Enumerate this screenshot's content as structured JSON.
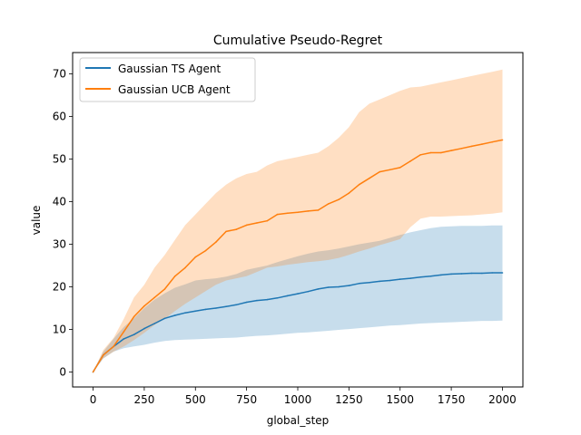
{
  "chart_data": {
    "type": "line",
    "title": "Cumulative Pseudo-Regret",
    "xlabel": "global_step",
    "ylabel": "value",
    "xlim": [
      -100,
      2100
    ],
    "ylim": [
      -3.5,
      75
    ],
    "xticks": [
      0,
      250,
      500,
      750,
      1000,
      1250,
      1500,
      1750,
      2000
    ],
    "yticks": [
      0,
      10,
      20,
      30,
      40,
      50,
      60,
      70
    ],
    "grid": false,
    "legend_position": "upper-left",
    "series": [
      {
        "name": "Gaussian TS Agent",
        "color": "#1f77b4",
        "x": [
          0,
          50,
          100,
          150,
          200,
          250,
          300,
          350,
          400,
          450,
          500,
          550,
          600,
          650,
          700,
          750,
          800,
          850,
          900,
          950,
          1000,
          1050,
          1100,
          1150,
          1200,
          1250,
          1300,
          1350,
          1400,
          1450,
          1500,
          1550,
          1600,
          1650,
          1700,
          1750,
          1800,
          1850,
          1900,
          1950,
          2000
        ],
        "y": [
          0,
          4,
          6,
          7.8,
          8.8,
          10.2,
          11.4,
          12.6,
          13.3,
          13.9,
          14.3,
          14.7,
          15.0,
          15.4,
          15.8,
          16.4,
          16.8,
          17.0,
          17.4,
          17.9,
          18.4,
          18.9,
          19.5,
          19.9,
          20.0,
          20.3,
          20.8,
          21.0,
          21.3,
          21.5,
          21.8,
          22.0,
          22.3,
          22.5,
          22.8,
          23.0,
          23.1,
          23.2,
          23.2,
          23.3,
          23.3
        ],
        "lower": [
          0,
          3.2,
          4.8,
          5.6,
          6.0,
          6.4,
          6.9,
          7.3,
          7.5,
          7.6,
          7.7,
          7.8,
          7.9,
          8.0,
          8.1,
          8.3,
          8.5,
          8.6,
          8.8,
          9.0,
          9.2,
          9.3,
          9.5,
          9.7,
          9.9,
          10.1,
          10.3,
          10.5,
          10.7,
          10.9,
          11.0,
          11.2,
          11.4,
          11.5,
          11.6,
          11.7,
          11.8,
          11.9,
          12.0,
          12.0,
          12.1
        ],
        "upper": [
          0,
          4.8,
          7.8,
          10.6,
          12.6,
          15.0,
          17.0,
          18.5,
          19.8,
          20.6,
          21.5,
          21.8,
          22.0,
          22.4,
          23.0,
          24.0,
          24.5,
          25.0,
          25.8,
          26.5,
          27.2,
          27.8,
          28.3,
          28.6,
          29.0,
          29.5,
          30.0,
          30.4,
          30.8,
          31.5,
          32.2,
          32.8,
          33.3,
          33.8,
          34.1,
          34.2,
          34.3,
          34.3,
          34.3,
          34.4,
          34.4
        ]
      },
      {
        "name": "Gaussian UCB Agent",
        "color": "#ff7f0e",
        "x": [
          0,
          50,
          100,
          150,
          200,
          250,
          300,
          350,
          400,
          450,
          500,
          550,
          600,
          650,
          700,
          750,
          800,
          850,
          900,
          950,
          1000,
          1050,
          1100,
          1150,
          1200,
          1250,
          1300,
          1350,
          1400,
          1450,
          1500,
          1550,
          1600,
          1650,
          1700,
          1750,
          1800,
          1850,
          1900,
          1950,
          2000
        ],
        "y": [
          0,
          4,
          6,
          9.5,
          13.0,
          15.5,
          17.5,
          19.5,
          22.5,
          24.5,
          27.0,
          28.5,
          30.5,
          33.0,
          33.5,
          34.5,
          35.0,
          35.5,
          37.0,
          37.3,
          37.5,
          37.8,
          38.0,
          39.5,
          40.5,
          42.0,
          44.0,
          45.5,
          47.0,
          47.5,
          48.0,
          49.5,
          51.0,
          51.5,
          51.5,
          52.0,
          52.5,
          53.0,
          53.5,
          54.0,
          54.5
        ],
        "lower": [
          0,
          3.2,
          4.8,
          6.0,
          7.5,
          9.2,
          11.0,
          12.5,
          14.3,
          16.0,
          17.5,
          19.0,
          20.5,
          21.5,
          22.0,
          22.5,
          23.5,
          24.5,
          24.8,
          25.2,
          25.5,
          25.8,
          26.0,
          26.3,
          26.8,
          27.5,
          28.3,
          29.0,
          29.8,
          30.5,
          31.2,
          34.0,
          36.0,
          36.5,
          36.5,
          36.6,
          36.7,
          36.8,
          37.0,
          37.2,
          37.5
        ],
        "upper": [
          0,
          5.2,
          8.0,
          12.5,
          17.5,
          20.5,
          24.5,
          27.5,
          31.0,
          34.5,
          37.0,
          39.5,
          42.0,
          44.0,
          45.5,
          46.5,
          47.0,
          48.5,
          49.5,
          50.0,
          50.5,
          51.0,
          51.5,
          53.0,
          55.0,
          57.5,
          61.0,
          63.0,
          64.0,
          65.0,
          66.0,
          66.8,
          67.0,
          67.5,
          68.0,
          68.5,
          69.0,
          69.5,
          70.0,
          70.5,
          71.0
        ]
      }
    ]
  }
}
